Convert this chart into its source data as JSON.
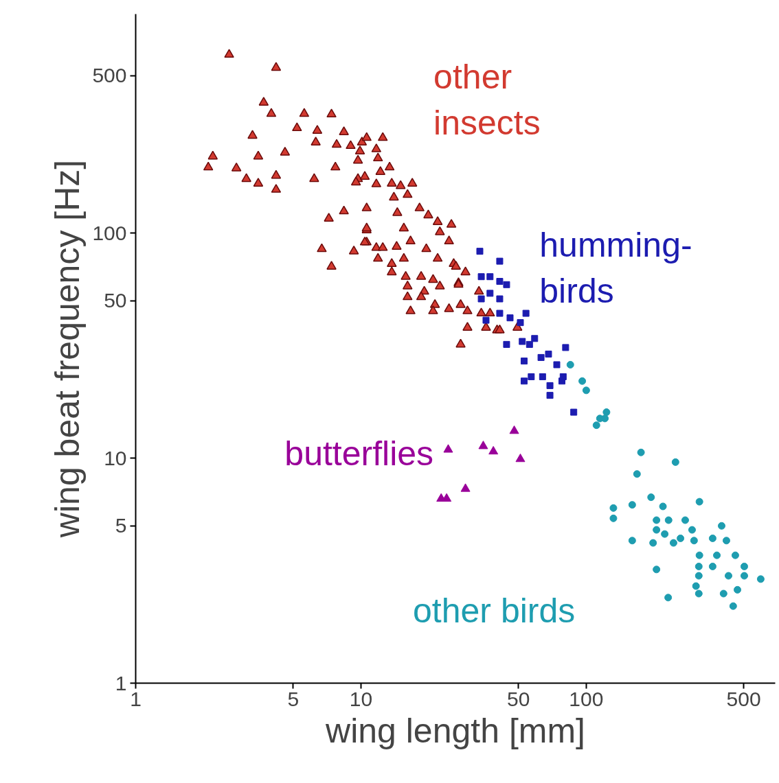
{
  "chart_data": {
    "type": "scatter",
    "xlabel": "wing length [mm]",
    "ylabel": "wing beat frequency [Hz]",
    "log": "xy",
    "grid": false,
    "xlim": [
      1,
      690
    ],
    "ylim": [
      1,
      940
    ],
    "xticks": [
      1,
      5,
      10,
      50,
      100,
      500
    ],
    "yticks": [
      1,
      5,
      10,
      50,
      100,
      500
    ],
    "series": [
      {
        "name": "other\ninsects",
        "color": "#d23a30",
        "marker": "triangle",
        "x": [
          2.6,
          4.2,
          3.7,
          4.0,
          5.6,
          7.4,
          5.2,
          6.4,
          3.3,
          8.4,
          6.3,
          7.8,
          9.0,
          2.2,
          3.5,
          4.6,
          2.1,
          2.8,
          3.1,
          3.5,
          4.2,
          4.2,
          6.2,
          7.7,
          10.1,
          9.7,
          8.4,
          10.6,
          7.2,
          6.7,
          7.4,
          9.3,
          10.6,
          11.7,
          10.6,
          10.6,
          12.5,
          9.9,
          11.7,
          9.7,
          11.9,
          9.5,
          10.4,
          12.2,
          13.4,
          11.7,
          13.7,
          15.0,
          16.9,
          14.0,
          16.1,
          18.2,
          19.9,
          21.9,
          25.2,
          22.4,
          24.6,
          14.5,
          10.6,
          15.5,
          10.4,
          12.5,
          14.4,
          16.6,
          11.9,
          13.7,
          15.5,
          19.5,
          21.9,
          25.8,
          13.7,
          15.8,
          18.5,
          20.9,
          16.1,
          19.1,
          22.4,
          16.1,
          18.5,
          21.3,
          24.6,
          27.7,
          29.7,
          16.6,
          20.9,
          29.1,
          27.1,
          29.7,
          34.2,
          35.9,
          40.2,
          26.4,
          27.1,
          27.7,
          37.4,
          41.3,
          49.5,
          33.4
        ],
        "values": [
          621,
          543,
          380,
          339,
          339,
          337,
          293,
          285,
          271,
          281,
          253,
          247,
          244,
          219,
          219,
          228,
          196,
          194,
          174,
          166,
          180,
          156,
          174,
          196,
          253,
          174,
          125,
          129,
          116,
          85,
          71,
          83,
          91,
          86,
          103,
          265,
          265,
          231,
          236,
          210,
          215,
          168,
          178,
          187,
          196,
          165,
          166,
          162,
          166,
          144,
          148,
          129,
          120,
          112,
          109,
          101,
          92,
          123,
          105,
          105,
          91,
          86,
          87,
          92,
          77,
          73,
          77,
          85,
          77,
          73,
          67,
          64,
          64,
          62,
          58,
          55,
          58,
          52,
          52,
          48,
          46,
          48,
          45,
          45,
          45,
          67,
          60,
          38,
          44,
          38,
          37,
          71,
          59,
          32,
          44,
          37,
          38,
          55
        ]
      },
      {
        "name": "humming-\nbirds",
        "color": "#1c1cb0",
        "marker": "square",
        "x": [
          33.7,
          41.3,
          34.2,
          37.4,
          41.3,
          44.3,
          37.4,
          41.3,
          34.2,
          41.3,
          45.9,
          54,
          51,
          35.9,
          44.3,
          52,
          59,
          56,
          53,
          63,
          68,
          81,
          74,
          57,
          64,
          78,
          69,
          69,
          53,
          88,
          79
        ],
        "values": [
          83,
          75,
          64,
          64,
          61,
          59,
          54,
          51,
          51,
          44,
          42,
          44,
          40,
          41,
          32,
          33,
          34,
          32,
          27,
          28,
          29,
          31,
          26,
          23,
          23,
          22,
          21,
          19,
          22,
          16,
          23
        ]
      },
      {
        "name": "butterflies",
        "color": "#990099",
        "marker": "triangle",
        "x": [
          24.4,
          34.9,
          38.7,
          47.9,
          51,
          29.1,
          22.7,
          24.0
        ],
        "values": [
          10.9,
          11.3,
          10.7,
          13.2,
          9.9,
          7.3,
          6.6,
          6.6
        ]
      },
      {
        "name": "other birds",
        "color": "#1e9db0",
        "marker": "circle",
        "x": [
          85,
          96,
          100,
          115,
          111,
          123,
          121,
          175,
          249,
          168,
          194,
          219,
          318,
          132,
          160,
          132,
          205,
          232,
          275,
          205,
          295,
          399,
          223,
          160,
          198,
          244,
          262,
          301,
          364,
          419,
          318,
          380,
          459,
          316,
          364,
          503,
          316,
          428,
          503,
          595,
          205,
          307,
          469,
          407,
          316,
          231,
          449
        ],
        "values": [
          26,
          22,
          20,
          15,
          14,
          16,
          15,
          10.6,
          9.6,
          8.5,
          6.7,
          6.1,
          6.4,
          6.0,
          6.2,
          5.4,
          5.3,
          5.3,
          5.3,
          4.8,
          4.8,
          5.0,
          4.6,
          4.3,
          4.2,
          4.2,
          4.4,
          4.3,
          4.4,
          4.3,
          3.7,
          3.7,
          3.7,
          3.3,
          3.3,
          3.3,
          3.0,
          3.0,
          3.0,
          2.9,
          3.2,
          2.7,
          2.6,
          2.5,
          2.5,
          2.4,
          2.2
        ]
      }
    ]
  }
}
